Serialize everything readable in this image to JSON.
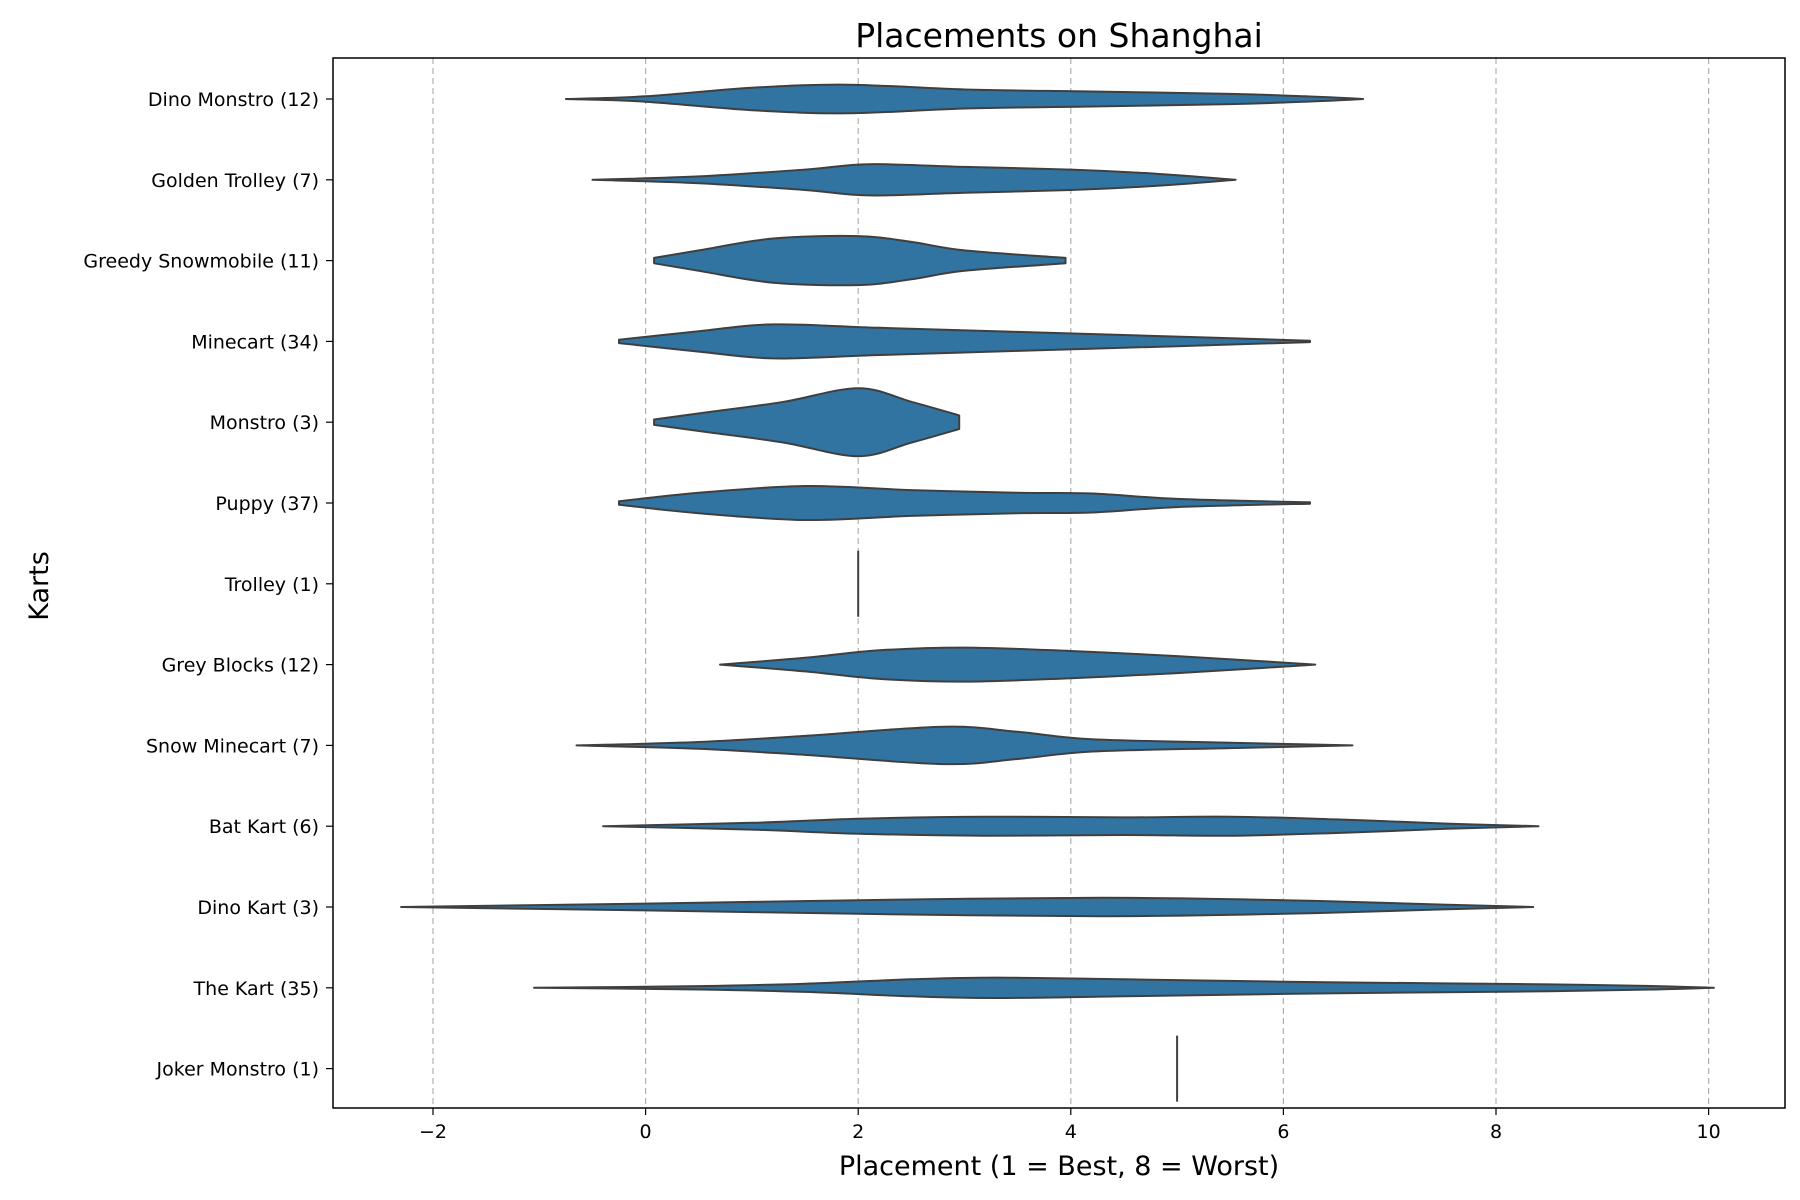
{
  "chart_data": {
    "type": "violin",
    "orientation": "horizontal",
    "title": "Placements on Shanghai",
    "xlabel": "Placement (1 = Best, 8 = Worst)",
    "ylabel": "Karts",
    "xlim": [
      -2.9,
      10.7
    ],
    "xticks": [
      -2,
      0,
      2,
      4,
      6,
      8,
      10
    ],
    "xtick_labels": [
      "−2",
      "0",
      "2",
      "4",
      "6",
      "8",
      "10"
    ],
    "grid": "x-dashed",
    "color": "#3274a1",
    "edge_color": "#3f3f3f",
    "series": [
      {
        "label": "Dino Monstro (12)",
        "profile": [
          [
            -0.75,
            0.0
          ],
          [
            0.0,
            0.08
          ],
          [
            1.0,
            0.33
          ],
          [
            1.9,
            0.42
          ],
          [
            3.0,
            0.28
          ],
          [
            4.2,
            0.22
          ],
          [
            5.5,
            0.15
          ],
          [
            6.2,
            0.08
          ],
          [
            6.75,
            0.0
          ]
        ]
      },
      {
        "label": "Golden Trolley (7)",
        "profile": [
          [
            -0.5,
            0.0
          ],
          [
            0.5,
            0.1
          ],
          [
            1.5,
            0.3
          ],
          [
            2.1,
            0.46
          ],
          [
            3.0,
            0.38
          ],
          [
            4.0,
            0.3
          ],
          [
            4.8,
            0.18
          ],
          [
            5.55,
            0.0
          ]
        ]
      },
      {
        "label": "Greedy Snowmobile (11)",
        "profile": [
          [
            0.08,
            0.08
          ],
          [
            0.5,
            0.3
          ],
          [
            1.2,
            0.65
          ],
          [
            2.0,
            0.72
          ],
          [
            2.5,
            0.55
          ],
          [
            3.0,
            0.3
          ],
          [
            3.95,
            0.08
          ]
        ]
      },
      {
        "label": "Minecart (34)",
        "profile": [
          [
            -0.25,
            0.05
          ],
          [
            0.5,
            0.3
          ],
          [
            1.2,
            0.5
          ],
          [
            2.2,
            0.4
          ],
          [
            3.5,
            0.28
          ],
          [
            5.0,
            0.14
          ],
          [
            6.25,
            0.02
          ]
        ]
      },
      {
        "label": "Monstro (3)",
        "profile": [
          [
            0.08,
            0.08
          ],
          [
            0.6,
            0.3
          ],
          [
            1.3,
            0.6
          ],
          [
            2.0,
            1.0
          ],
          [
            2.5,
            0.6
          ],
          [
            2.95,
            0.2
          ]
        ]
      },
      {
        "label": "Puppy (37)",
        "profile": [
          [
            -0.25,
            0.05
          ],
          [
            0.5,
            0.3
          ],
          [
            1.5,
            0.5
          ],
          [
            2.5,
            0.38
          ],
          [
            3.5,
            0.3
          ],
          [
            4.2,
            0.28
          ],
          [
            5.0,
            0.12
          ],
          [
            6.25,
            0.02
          ]
        ]
      },
      {
        "label": "Trolley (1)",
        "profile": []
      },
      {
        "label": "Grey Blocks (12)",
        "profile": [
          [
            0.7,
            0.0
          ],
          [
            1.5,
            0.2
          ],
          [
            2.2,
            0.42
          ],
          [
            3.0,
            0.5
          ],
          [
            4.0,
            0.4
          ],
          [
            5.0,
            0.25
          ],
          [
            5.8,
            0.1
          ],
          [
            6.3,
            0.0
          ]
        ]
      },
      {
        "label": "Snow Minecart (7)",
        "profile": [
          [
            -0.65,
            0.0
          ],
          [
            0.5,
            0.1
          ],
          [
            1.5,
            0.28
          ],
          [
            2.8,
            0.55
          ],
          [
            3.5,
            0.4
          ],
          [
            4.2,
            0.18
          ],
          [
            5.5,
            0.08
          ],
          [
            6.65,
            0.0
          ]
        ]
      },
      {
        "label": "Bat Kart (6)",
        "profile": [
          [
            -0.4,
            0.0
          ],
          [
            1.0,
            0.1
          ],
          [
            2.0,
            0.22
          ],
          [
            3.2,
            0.28
          ],
          [
            4.5,
            0.26
          ],
          [
            5.5,
            0.28
          ],
          [
            6.5,
            0.2
          ],
          [
            7.5,
            0.08
          ],
          [
            8.4,
            0.0
          ]
        ]
      },
      {
        "label": "Dino Kart (3)",
        "profile": [
          [
            -2.3,
            0.0
          ],
          [
            0.0,
            0.1
          ],
          [
            2.0,
            0.2
          ],
          [
            4.3,
            0.27
          ],
          [
            6.0,
            0.2
          ],
          [
            7.5,
            0.07
          ],
          [
            8.35,
            0.0
          ]
        ]
      },
      {
        "label": "The Kart (35)",
        "profile": [
          [
            -1.05,
            0.0
          ],
          [
            0.5,
            0.05
          ],
          [
            1.5,
            0.12
          ],
          [
            2.5,
            0.25
          ],
          [
            3.3,
            0.3
          ],
          [
            4.5,
            0.25
          ],
          [
            6.0,
            0.18
          ],
          [
            7.5,
            0.13
          ],
          [
            8.5,
            0.1
          ],
          [
            9.5,
            0.05
          ],
          [
            10.05,
            0.0
          ]
        ]
      },
      {
        "label": "Joker Monstro (1)",
        "profile": []
      }
    ],
    "single_values": {
      "Trolley (1)": 2,
      "Joker Monstro (1)": 5
    }
  }
}
